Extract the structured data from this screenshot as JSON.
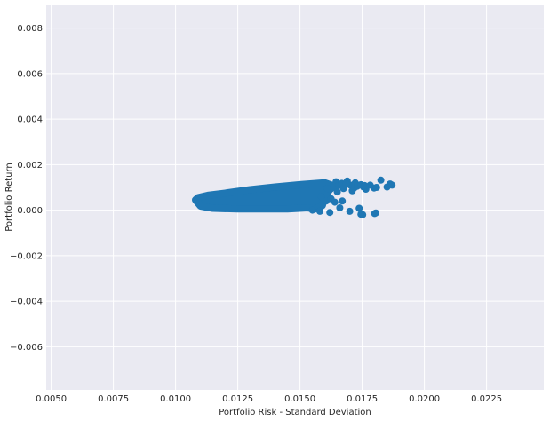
{
  "chart_data": {
    "type": "scatter",
    "title": "",
    "xlabel": "Portfolio Risk - Standard Deviation",
    "ylabel": "Portfolio Return",
    "xlim": [
      0.0048,
      0.0248
    ],
    "ylim": [
      -0.0079,
      0.009
    ],
    "x_ticks": [
      {
        "value": 0.005,
        "label": "0.0050"
      },
      {
        "value": 0.0075,
        "label": "0.0075"
      },
      {
        "value": 0.01,
        "label": "0.0100"
      },
      {
        "value": 0.0125,
        "label": "0.0125"
      },
      {
        "value": 0.015,
        "label": "0.0150"
      },
      {
        "value": 0.0175,
        "label": "0.0175"
      },
      {
        "value": 0.02,
        "label": "0.0200"
      },
      {
        "value": 0.0225,
        "label": "0.0225"
      }
    ],
    "y_ticks": [
      {
        "value": -0.006,
        "label": "−0.006"
      },
      {
        "value": -0.004,
        "label": "−0.004"
      },
      {
        "value": -0.002,
        "label": "−0.002"
      },
      {
        "value": 0.0,
        "label": "0.000"
      },
      {
        "value": 0.002,
        "label": "0.002"
      },
      {
        "value": 0.004,
        "label": "0.004"
      },
      {
        "value": 0.006,
        "label": "0.006"
      },
      {
        "value": 0.008,
        "label": "0.008"
      }
    ],
    "grid": true,
    "colors": {
      "background": "#eaeaf2",
      "grid": "#ffffff",
      "marker": "#1f77b4"
    },
    "dense_region": [
      [
        0.0108,
        0.00045
      ],
      [
        0.011,
        0.00018
      ],
      [
        0.0115,
        8e-05
      ],
      [
        0.0125,
        5e-05
      ],
      [
        0.0135,
        5e-05
      ],
      [
        0.0145,
        5e-05
      ],
      [
        0.0153,
        0.0001
      ],
      [
        0.0156,
        5e-05
      ],
      [
        0.0159,
        0.0002
      ],
      [
        0.016,
        0.0006
      ],
      [
        0.0162,
        0.0009
      ],
      [
        0.0164,
        0.00105
      ],
      [
        0.016,
        0.0012
      ],
      [
        0.015,
        0.00112
      ],
      [
        0.014,
        0.00102
      ],
      [
        0.013,
        0.0009
      ],
      [
        0.012,
        0.00075
      ],
      [
        0.0113,
        0.00065
      ],
      [
        0.0109,
        0.00055
      ]
    ],
    "points": [
      [
        0.01645,
        0.00125
      ],
      [
        0.01655,
        0.00108
      ],
      [
        0.01668,
        0.00118
      ],
      [
        0.01675,
        0.00095
      ],
      [
        0.0169,
        0.00128
      ],
      [
        0.01702,
        0.0011
      ],
      [
        0.01718,
        0.00098
      ],
      [
        0.01722,
        0.0012
      ],
      [
        0.0173,
        0.00105
      ],
      [
        0.01745,
        0.00112
      ],
      [
        0.01755,
        0.00102
      ],
      [
        0.01765,
        0.00092
      ],
      [
        0.01782,
        0.0011
      ],
      [
        0.01798,
        0.00097
      ],
      [
        0.01825,
        0.00132
      ],
      [
        0.01808,
        0.001
      ],
      [
        0.0185,
        0.00102
      ],
      [
        0.01862,
        0.00115
      ],
      [
        0.0187,
        0.0011
      ],
      [
        0.01585,
        0.0006
      ],
      [
        0.01605,
        0.0004
      ],
      [
        0.0161,
        0.00095
      ],
      [
        0.01625,
        0.0005
      ],
      [
        0.0165,
        0.0008
      ],
      [
        0.0167,
        0.0004
      ],
      [
        0.0155,
        0.0
      ],
      [
        0.0158,
        -5e-05
      ],
      [
        0.0162,
        -0.0001
      ],
      [
        0.0164,
        0.00035
      ],
      [
        0.0166,
        0.0001
      ],
      [
        0.017,
        -5e-05
      ],
      [
        0.01738,
        8e-05
      ],
      [
        0.01745,
        -0.00018
      ],
      [
        0.01752,
        -0.0002
      ],
      [
        0.018,
        -0.00015
      ],
      [
        0.01805,
        -0.00012
      ],
      [
        0.01685,
        0.00115
      ],
      [
        0.0171,
        0.00085
      ],
      [
        0.0176,
        0.00108
      ]
    ]
  }
}
